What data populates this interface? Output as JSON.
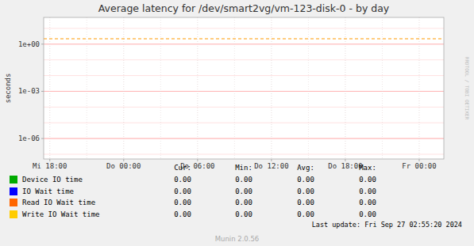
{
  "chart_data": {
    "type": "line",
    "title": "Average latency for /dev/smart2vg/vm-123-disk-0 - by day",
    "y_label": "seconds",
    "log": "y",
    "grid": true,
    "xlim": [
      -0.5,
      32
    ],
    "xticks": [
      {
        "value": 0,
        "label": "Mi 18:00"
      },
      {
        "value": 6,
        "label": "Do 00:00"
      },
      {
        "value": 12,
        "label": "Do 06:00"
      },
      {
        "value": 18,
        "label": "Do 12:00"
      },
      {
        "value": 24,
        "label": "Do 18:00"
      },
      {
        "value": 30,
        "label": "Fr 00:00"
      }
    ],
    "ylim": [
      5e-08,
      50
    ],
    "yticks": [
      {
        "value": 1e-06,
        "label": "1e-06"
      },
      {
        "value": 0.001,
        "label": "1e-03"
      },
      {
        "value": 1,
        "label": "1e+00"
      }
    ],
    "reference_lines": [
      {
        "value": 2.2,
        "color": "#ff9900",
        "line_style": "dashed"
      }
    ],
    "stat_headers": [
      "Cur:",
      "Min:",
      "Avg:",
      "Max:"
    ],
    "series": [
      {
        "name": "Device IO time",
        "color": "#00aa00",
        "x": [],
        "values": [],
        "stats": [
          {
            "value": 0,
            "label": "0.00"
          },
          {
            "value": 0,
            "label": "0.00"
          },
          {
            "value": 0,
            "label": "0.00"
          },
          {
            "value": 0,
            "label": "0.00"
          }
        ]
      },
      {
        "name": "IO Wait time",
        "color": "#0000ff",
        "x": [],
        "values": [],
        "stats": [
          {
            "value": 0,
            "label": "0.00"
          },
          {
            "value": 0,
            "label": "0.00"
          },
          {
            "value": 0,
            "label": "0.00"
          },
          {
            "value": 0,
            "label": "0.00"
          }
        ]
      },
      {
        "name": "Read IO Wait time",
        "color": "#ff6600",
        "x": [],
        "values": [],
        "stats": [
          {
            "value": 0,
            "label": "0.00"
          },
          {
            "value": 0,
            "label": "0.00"
          },
          {
            "value": 0,
            "label": "0.00"
          },
          {
            "value": 0,
            "label": "0.00"
          }
        ]
      },
      {
        "name": "Write IO Wait time",
        "color": "#ffcc00",
        "x": [],
        "values": [],
        "stats": [
          {
            "value": 0,
            "label": "0.00"
          },
          {
            "value": 0,
            "label": "0.00"
          },
          {
            "value": 0,
            "label": "0.00"
          },
          {
            "value": 0,
            "label": "0.00"
          }
        ]
      }
    ],
    "watermark": "RRDTOOL / TOBI OETIKER",
    "last_update": "Last update: Fri Sep 27 02:55:20 2024",
    "footer": "Munin 2.0.56"
  }
}
